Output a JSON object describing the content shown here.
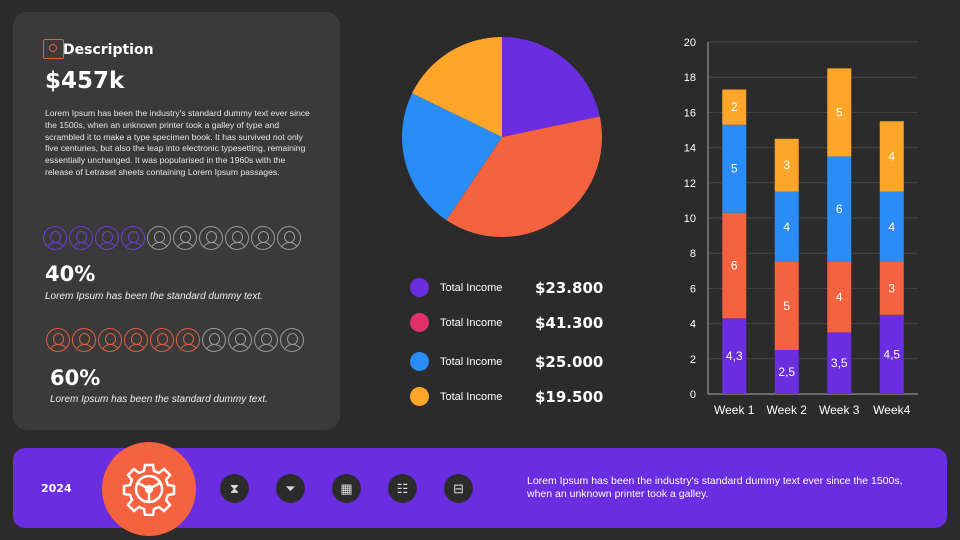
{
  "description": {
    "title": "Description",
    "icon": "safe-icon",
    "amount": "$457k",
    "text": "Lorem Ipsum has been the industry's standard dummy text ever since the 1500s, when an unknown printer took a galley  of type and scrambled it to make a type specimen book. It has survived  not only five centuries, but also the leap  into electronic typesetting, remaining essentially unchanged. It was popularised in the 1960s with the release of Letraset sheets containing Lorem Ipsum passages."
  },
  "stats": [
    {
      "percent": "40%",
      "filled": 4,
      "total": 10,
      "color": "#6b3fd4",
      "text": "Lorem Ipsum has been the standard  dummy text."
    },
    {
      "percent": "60%",
      "filled": 6,
      "total": 10,
      "color": "#e0603f",
      "text": "Lorem Ipsum has been the standard  dummy text."
    }
  ],
  "pie": {
    "slices": [
      {
        "label": "Total Income",
        "value": 23.8,
        "display": "$23.800",
        "color": "#6b2de0",
        "legend_color": "#6b2de0"
      },
      {
        "label": "Total Income",
        "value": 41.3,
        "display": "$41.300",
        "color": "#f4623f",
        "legend_color": "#e0306a"
      },
      {
        "label": "Total Income",
        "value": 25.0,
        "display": "$25.000",
        "color": "#2a8cf7",
        "legend_color": "#2a8cf7"
      },
      {
        "label": "Total Income",
        "value": 19.5,
        "display": "$19.500",
        "color": "#ffa52a",
        "legend_color": "#ffa52a"
      }
    ]
  },
  "chart_data": {
    "type": "bar",
    "stacked": true,
    "categories": [
      "Week 1",
      "Week 2",
      "Week 3",
      "Week4"
    ],
    "ylim": [
      0,
      20
    ],
    "yticks": [
      0,
      2,
      4,
      6,
      8,
      10,
      12,
      14,
      16,
      18,
      20
    ],
    "grid": true,
    "series": [
      {
        "values": [
          4.3,
          2.5,
          3.5,
          4.5
        ],
        "labels": [
          "4,3",
          "2,5",
          "3,5",
          "4,5"
        ],
        "color": "#6b2de0"
      },
      {
        "values": [
          6,
          5,
          4,
          3
        ],
        "labels": [
          "6",
          "5",
          "4",
          "3"
        ],
        "color": "#f4623f"
      },
      {
        "values": [
          5,
          4,
          6,
          4
        ],
        "labels": [
          "5",
          "4",
          "6",
          "4"
        ],
        "color": "#2a8cf7"
      },
      {
        "values": [
          2,
          3,
          5,
          4
        ],
        "labels": [
          "2",
          "3",
          "5",
          "4"
        ],
        "color": "#ffa52a"
      }
    ]
  },
  "footer": {
    "year": "2024",
    "main_icon": "gear-steering-icon",
    "icons": [
      "hourglass-icon",
      "funnel-icon",
      "calendar-icon",
      "team-icon",
      "briefcase-icon"
    ],
    "text": "Lorem Ipsum has been the industry's standard dummy text ever since the 1500s, when an unknown printer took a galley."
  }
}
